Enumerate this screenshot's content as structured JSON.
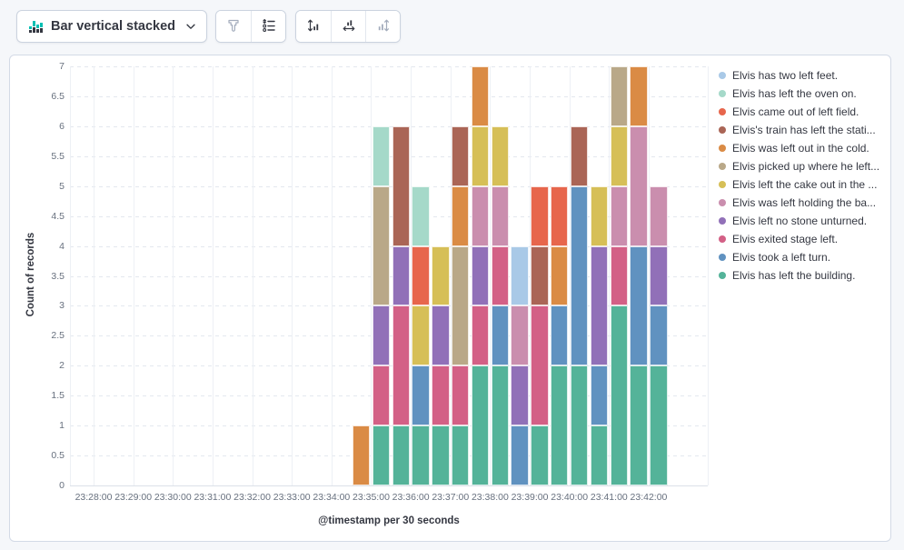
{
  "toolbar": {
    "chart_type": {
      "label": "Bar vertical stacked"
    },
    "icon_buttons": [
      {
        "id": "brush",
        "icon": "brush-icon",
        "disabled": true
      },
      {
        "id": "legend",
        "icon": "legend-list-icon",
        "disabled": false
      },
      {
        "id": "axis-left",
        "icon": "axis-left-icon",
        "disabled": false
      },
      {
        "id": "axis-bottom",
        "icon": "axis-bottom-icon",
        "disabled": false
      },
      {
        "id": "axis-right",
        "icon": "axis-right-icon",
        "disabled": true
      }
    ]
  },
  "chart_data": {
    "type": "bar",
    "stacked": true,
    "orientation": "vertical",
    "title": "",
    "xlabel": "@timestamp per 30 seconds",
    "ylabel": "Count of records",
    "ylim": [
      0,
      7
    ],
    "y_tick_step": 0.5,
    "grid": true,
    "legend_position": "right",
    "x_tick_labels": [
      "23:28:00",
      "23:29:00",
      "23:30:00",
      "23:31:00",
      "23:32:00",
      "23:33:00",
      "23:34:00",
      "23:35:00",
      "23:36:00",
      "23:37:00",
      "23:38:00",
      "23:39:00",
      "23:40:00",
      "23:41:00",
      "23:42:00"
    ],
    "bucket_interval_seconds": 30,
    "buckets": [
      "23:34:30",
      "23:35:00",
      "23:35:30",
      "23:36:00",
      "23:36:30",
      "23:37:00",
      "23:37:30",
      "23:38:00",
      "23:38:30",
      "23:39:00",
      "23:39:30",
      "23:40:00",
      "23:40:30",
      "23:41:00",
      "23:41:30",
      "23:42:00"
    ],
    "bucket_totals": [
      1,
      6,
      6,
      5,
      4,
      6,
      7,
      6,
      4,
      5,
      5,
      6,
      5,
      7,
      7,
      5
    ],
    "series": [
      {
        "name": "Elvis has left the building.",
        "color": "#54B399",
        "values": [
          0,
          1,
          1,
          1,
          1,
          1,
          2,
          2,
          0,
          1,
          2,
          2,
          1,
          3,
          2,
          2
        ]
      },
      {
        "name": "Elvis took a left turn.",
        "color": "#6092C0",
        "values": [
          0,
          0,
          0,
          1,
          0,
          0,
          0,
          1,
          1,
          0,
          1,
          3,
          1,
          0,
          2,
          1
        ]
      },
      {
        "name": "Elvis exited stage left.",
        "color": "#D36086",
        "values": [
          0,
          1,
          2,
          0,
          1,
          1,
          1,
          1,
          0,
          2,
          0,
          0,
          0,
          1,
          0,
          0
        ]
      },
      {
        "name": "Elvis left no stone unturned.",
        "color": "#9170B8",
        "values": [
          0,
          1,
          1,
          0,
          1,
          0,
          1,
          0,
          1,
          0,
          0,
          0,
          2,
          0,
          0,
          1
        ]
      },
      {
        "name": "Elvis was left holding the ba...",
        "color": "#CA8EAE",
        "values": [
          0,
          0,
          0,
          0,
          0,
          0,
          1,
          1,
          1,
          0,
          0,
          0,
          0,
          1,
          2,
          1
        ]
      },
      {
        "name": "Elvis left the cake out in the ...",
        "color": "#D6BF57",
        "values": [
          0,
          0,
          0,
          1,
          1,
          0,
          1,
          1,
          0,
          0,
          0,
          0,
          1,
          1,
          0,
          0
        ]
      },
      {
        "name": "Elvis picked up where he left...",
        "color": "#B9A888",
        "values": [
          0,
          2,
          0,
          0,
          0,
          2,
          0,
          0,
          0,
          0,
          0,
          0,
          0,
          1,
          0,
          0
        ]
      },
      {
        "name": "Elvis was left out in the cold.",
        "color": "#DA8B45",
        "values": [
          1,
          0,
          0,
          0,
          0,
          1,
          1,
          0,
          0,
          0,
          1,
          0,
          0,
          0,
          1,
          0
        ]
      },
      {
        "name": "Elvis's train has left the stati...",
        "color": "#AA6556",
        "values": [
          0,
          0,
          2,
          0,
          0,
          1,
          0,
          0,
          0,
          1,
          0,
          1,
          0,
          0,
          0,
          0
        ]
      },
      {
        "name": "Elvis came out of left field.",
        "color": "#E7664C",
        "values": [
          0,
          0,
          0,
          1,
          0,
          0,
          0,
          0,
          0,
          1,
          1,
          0,
          0,
          0,
          0,
          0
        ]
      },
      {
        "name": "Elvis has left the oven on.",
        "color": "#A5D9C9",
        "values": [
          0,
          1,
          0,
          1,
          0,
          0,
          0,
          0,
          0,
          0,
          0,
          0,
          0,
          0,
          0,
          0
        ]
      },
      {
        "name": "Elvis has two left feet.",
        "color": "#A9C9E7",
        "values": [
          0,
          0,
          0,
          0,
          0,
          0,
          0,
          0,
          1,
          0,
          0,
          0,
          0,
          0,
          0,
          0
        ]
      }
    ],
    "legend_note": "legend lists series in reverse stacking order (top of legend = top of palette cycle)"
  }
}
